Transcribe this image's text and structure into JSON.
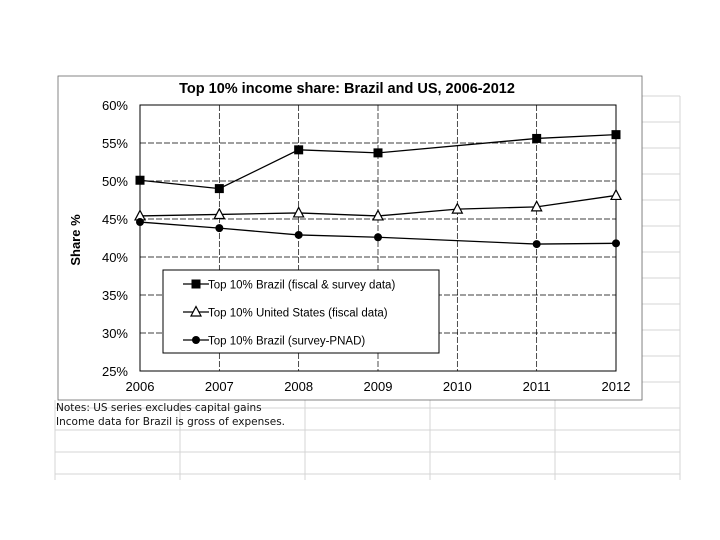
{
  "chart_data": {
    "type": "line",
    "title": "Top 10% income share: Brazil and US, 2006-2012",
    "xlabel": "",
    "ylabel": "Share %",
    "x": [
      "2006",
      "2007",
      "2008",
      "2009",
      "2010",
      "2011",
      "2012"
    ],
    "y_ticks": [
      "60%",
      "55%",
      "50%",
      "45%",
      "40%",
      "35%",
      "30%",
      "25%"
    ],
    "ylim": [
      25,
      60
    ],
    "grid": true,
    "legend_position": "lower-left",
    "series": [
      {
        "name": "Top 10% Brazil (fiscal & survey data)",
        "marker": "square",
        "values": [
          50.1,
          49.0,
          54.1,
          53.7,
          null,
          55.6,
          56.1
        ]
      },
      {
        "name": "Top 10% United States (fiscal data)",
        "marker": "triangle",
        "values": [
          45.4,
          45.6,
          45.8,
          45.4,
          46.3,
          46.6,
          48.1
        ]
      },
      {
        "name": "Top 10% Brazil (survey-PNAD)",
        "marker": "circle",
        "values": [
          44.6,
          43.8,
          42.9,
          42.6,
          null,
          41.7,
          41.8
        ]
      }
    ]
  },
  "notes": [
    "Notes: US series excludes capital gains",
    "Income data for Brazil is gross of expenses."
  ]
}
